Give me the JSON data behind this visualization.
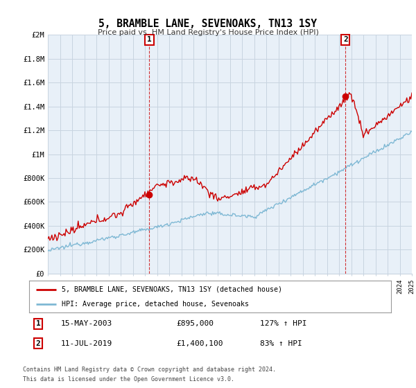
{
  "title": "5, BRAMBLE LANE, SEVENOAKS, TN13 1SY",
  "subtitle": "Price paid vs. HM Land Registry's House Price Index (HPI)",
  "ylim": [
    0,
    2000000
  ],
  "yticks": [
    0,
    200000,
    400000,
    600000,
    800000,
    1000000,
    1200000,
    1400000,
    1600000,
    1800000,
    2000000
  ],
  "ytick_labels": [
    "£0",
    "£200K",
    "£400K",
    "£600K",
    "£800K",
    "£1M",
    "£1.2M",
    "£1.4M",
    "£1.6M",
    "£1.8M",
    "£2M"
  ],
  "hpi_color": "#7eb8d4",
  "price_color": "#cc0000",
  "bg_plot_color": "#e8f0f8",
  "marker1_year": 2003.37,
  "marker1_value": 895000,
  "marker2_year": 2019.53,
  "marker2_value": 1400100,
  "legend_line1": "5, BRAMBLE LANE, SEVENOAKS, TN13 1SY (detached house)",
  "legend_line2": "HPI: Average price, detached house, Sevenoaks",
  "footnote1": "Contains HM Land Registry data © Crown copyright and database right 2024.",
  "footnote2": "This data is licensed under the Open Government Licence v3.0.",
  "bg_color": "#ffffff",
  "grid_color": "#c8d4e0"
}
